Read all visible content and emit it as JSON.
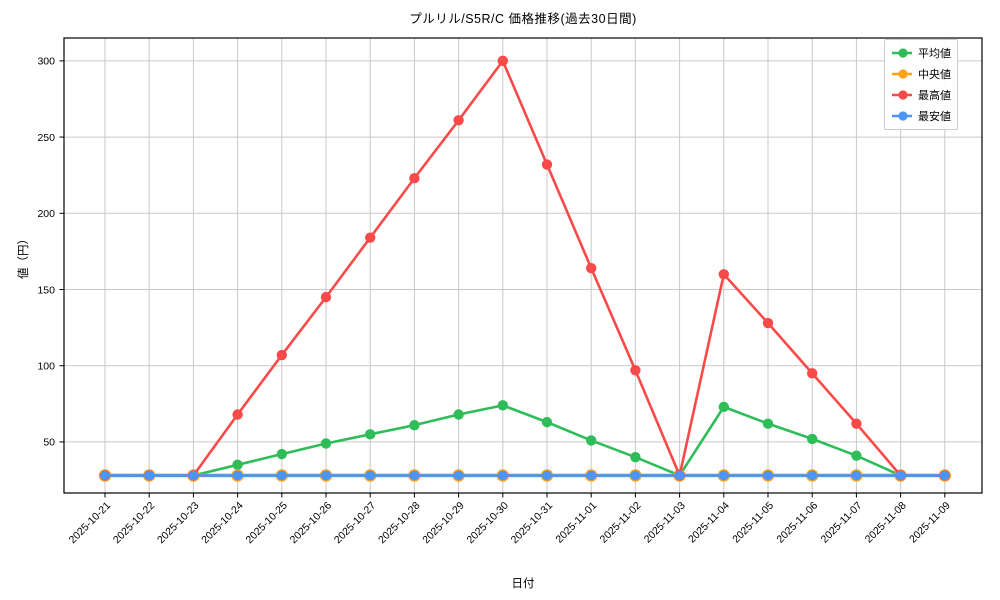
{
  "chart_data": {
    "type": "line",
    "title": "プルリル/S5R/C 価格推移(過去30日間)",
    "xlabel": "日付",
    "ylabel": "値（円）",
    "x": [
      "2025-10-21",
      "2025-10-22",
      "2025-10-23",
      "2025-10-24",
      "2025-10-25",
      "2025-10-26",
      "2025-10-27",
      "2025-10-28",
      "2025-10-29",
      "2025-10-30",
      "2025-10-31",
      "2025-11-01",
      "2025-11-02",
      "2025-11-03",
      "2025-11-04",
      "2025-11-05",
      "2025-11-06",
      "2025-11-07",
      "2025-11-08",
      "2025-11-09"
    ],
    "series": [
      {
        "name": "平均値",
        "color": "#2ebd59",
        "values": [
          28,
          28,
          28,
          35,
          42,
          49,
          55,
          61,
          68,
          74,
          63,
          51,
          40,
          28,
          73,
          62,
          52,
          41,
          28,
          28
        ]
      },
      {
        "name": "中央値",
        "color": "#ffa216",
        "values": [
          28,
          28,
          28,
          28,
          28,
          28,
          28,
          28,
          28,
          28,
          28,
          28,
          28,
          28,
          28,
          28,
          28,
          28,
          28,
          28
        ]
      },
      {
        "name": "最高値",
        "color": "#f94a4a",
        "values": [
          28,
          28,
          28,
          68,
          107,
          145,
          184,
          223,
          261,
          300,
          232,
          164,
          97,
          28,
          160,
          128,
          95,
          62,
          28,
          28
        ]
      },
      {
        "name": "最安値",
        "color": "#4d94f7",
        "values": [
          28,
          28,
          28,
          28,
          28,
          28,
          28,
          28,
          28,
          28,
          28,
          28,
          28,
          28,
          28,
          28,
          28,
          28,
          28,
          28
        ]
      }
    ],
    "yticks": [
      50,
      100,
      150,
      200,
      250,
      300
    ],
    "ylim": [
      16.5,
      315
    ],
    "grid": true,
    "grid_color": "#c9c9c9",
    "background": "#ffffff",
    "legend_position": "upper right"
  }
}
